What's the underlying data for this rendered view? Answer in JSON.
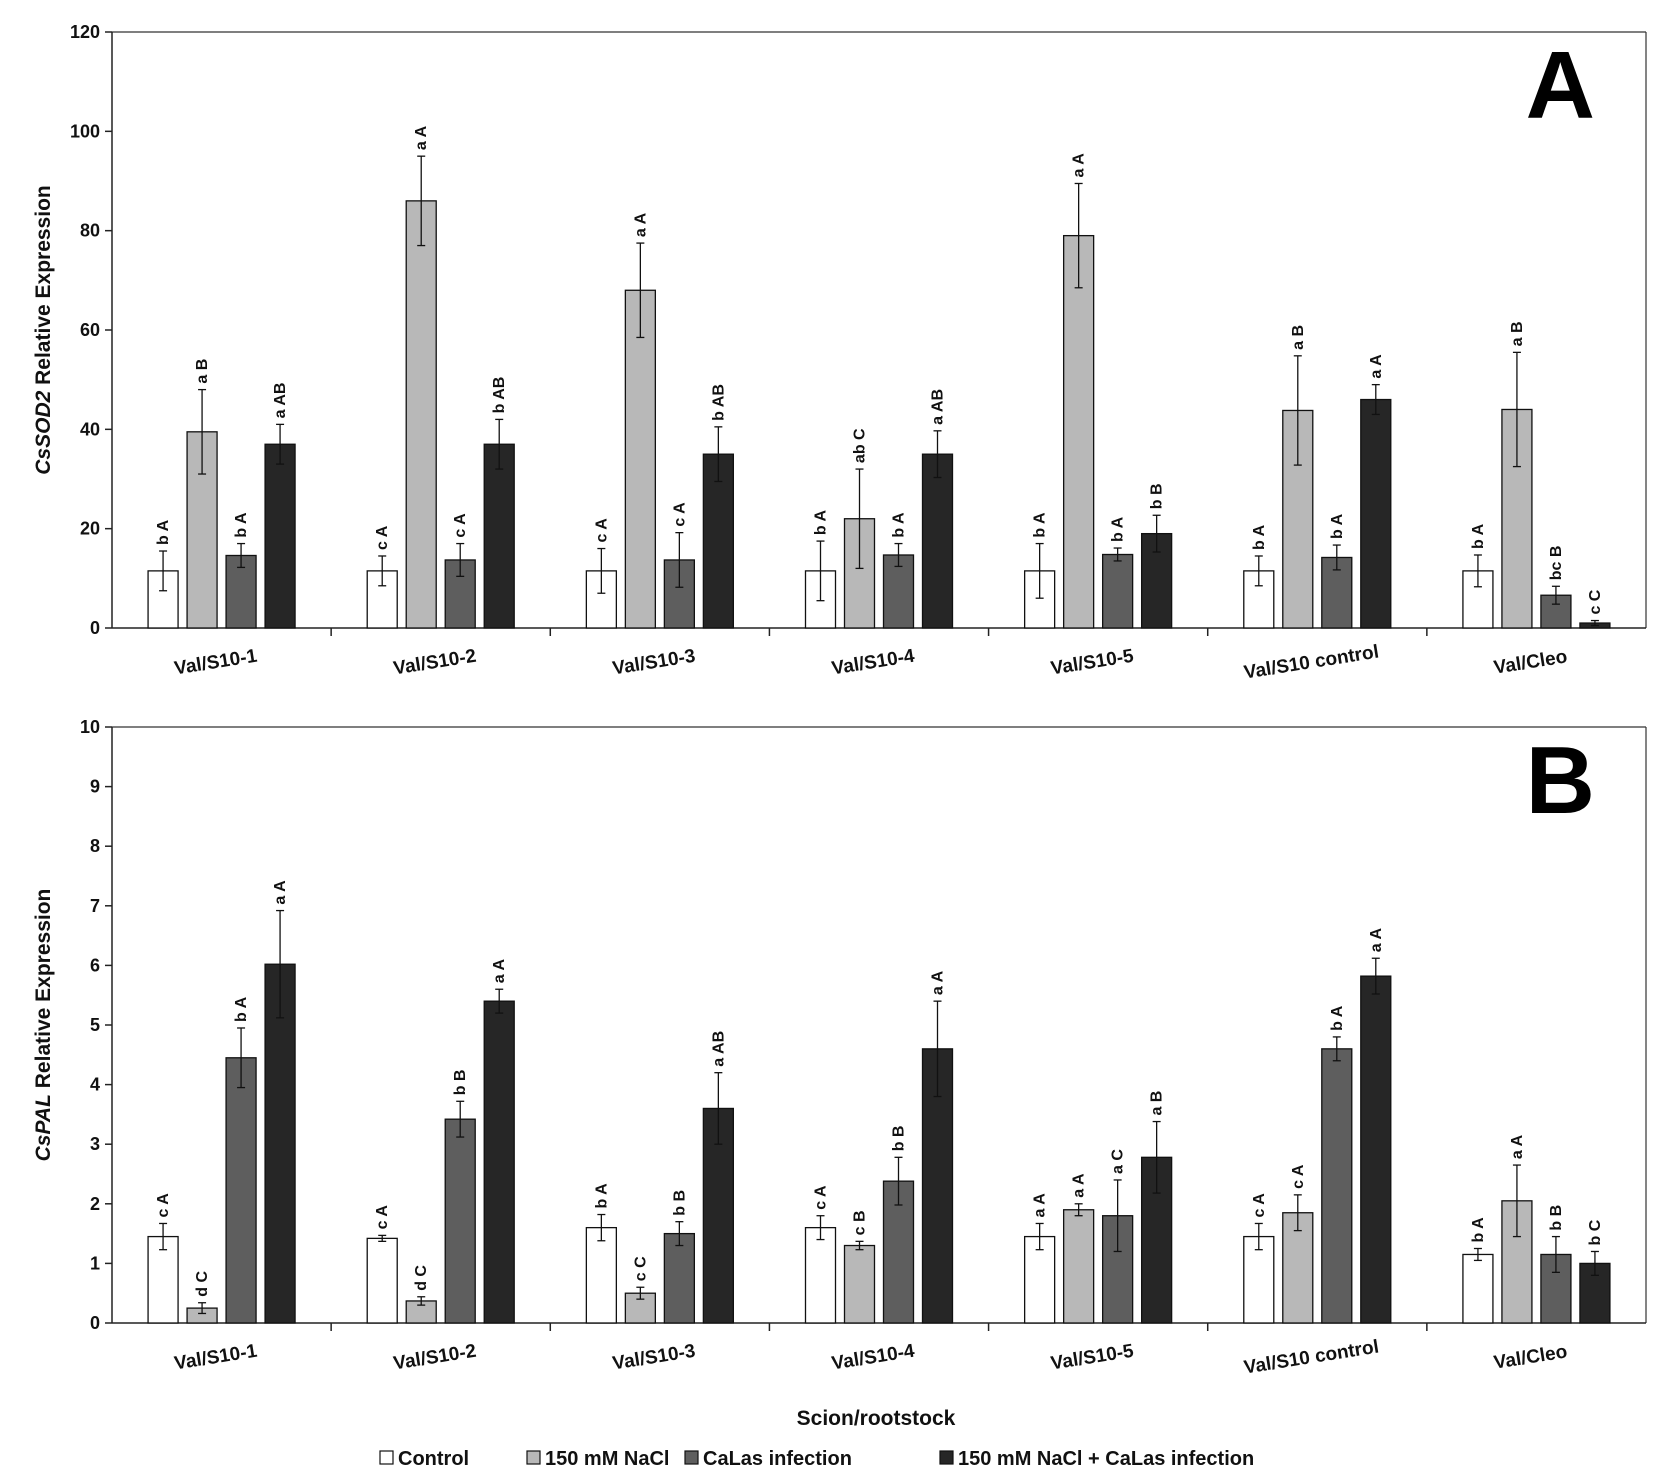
{
  "chart_data": [
    {
      "type": "bar",
      "panel_label": "A",
      "ylabel_italic": "CsSOD2",
      "ylabel_rest": " Relative Expression",
      "xlabel": "",
      "ylim": [
        0,
        120
      ],
      "yticks": [
        0,
        20,
        40,
        60,
        80,
        100,
        120
      ],
      "categories": [
        "Val/S10-1",
        "Val/S10-2",
        "Val/S10-3",
        "Val/S10-4",
        "Val/S10-5",
        "Val/S10 control",
        "Val/Cleo"
      ],
      "series": [
        {
          "name": "Control",
          "values": [
            11.5,
            11.5,
            11.5,
            11.5,
            11.5,
            11.5,
            11.5
          ],
          "errors": [
            4,
            3,
            4.5,
            6,
            5.5,
            3,
            3.2
          ],
          "labels": [
            "b A",
            "c A",
            "c A",
            "b A",
            "b A",
            "b A",
            "b A"
          ]
        },
        {
          "name": "150 mM NaCl",
          "values": [
            39.5,
            86,
            68,
            22,
            79,
            43.8,
            44
          ],
          "errors": [
            8.5,
            9,
            9.5,
            10,
            10.5,
            11,
            11.5
          ],
          "labels": [
            "a B",
            "a A",
            "a A",
            "ab C",
            "a A",
            "a B",
            "a B"
          ]
        },
        {
          "name": "CaLas infection",
          "values": [
            14.6,
            13.7,
            13.7,
            14.7,
            14.8,
            14.2,
            6.6
          ],
          "errors": [
            2.4,
            3.3,
            5.5,
            2.3,
            1.3,
            2.5,
            1.8
          ],
          "labels": [
            "b A",
            "c A",
            "c A",
            "b A",
            "b A",
            "b A",
            "bc B"
          ]
        },
        {
          "name": "150 mM NaCl + CaLas infection",
          "values": [
            37,
            37,
            35,
            35,
            19,
            46,
            1
          ],
          "errors": [
            4,
            5,
            5.5,
            4.7,
            3.7,
            3,
            0.5
          ],
          "labels": [
            "a AB",
            "b AB",
            "b AB",
            "a AB",
            "b B",
            "a A",
            "c C"
          ]
        }
      ]
    },
    {
      "type": "bar",
      "panel_label": "B",
      "ylabel_italic": "CsPAL",
      "ylabel_rest": " Relative Expression",
      "xlabel": "Scion/rootstock",
      "ylim": [
        0,
        10
      ],
      "yticks": [
        0,
        1,
        2,
        3,
        4,
        5,
        6,
        7,
        8,
        9,
        10
      ],
      "categories": [
        "Val/S10-1",
        "Val/S10-2",
        "Val/S10-3",
        "Val/S10-4",
        "Val/S10-5",
        "Val/S10 control",
        "Val/Cleo"
      ],
      "series": [
        {
          "name": "Control",
          "values": [
            1.45,
            1.42,
            1.6,
            1.6,
            1.45,
            1.45,
            1.15
          ],
          "errors": [
            0.22,
            0.05,
            0.22,
            0.2,
            0.22,
            0.22,
            0.1
          ],
          "labels": [
            "c A",
            "c A",
            "b A",
            "c A",
            "a A",
            "c A",
            "b A"
          ]
        },
        {
          "name": "150 mM NaCl",
          "values": [
            0.25,
            0.37,
            0.5,
            1.3,
            1.9,
            1.85,
            2.05
          ],
          "errors": [
            0.09,
            0.07,
            0.1,
            0.07,
            0.1,
            0.3,
            0.6
          ],
          "labels": [
            "d C",
            "d C",
            "c C",
            "c B",
            "a A",
            "c A",
            "a A"
          ]
        },
        {
          "name": "CaLas infection",
          "values": [
            4.45,
            3.42,
            1.5,
            2.38,
            1.8,
            4.6,
            1.15
          ],
          "errors": [
            0.5,
            0.3,
            0.2,
            0.4,
            0.6,
            0.2,
            0.3
          ],
          "labels": [
            "b A",
            "b B",
            "b B",
            "b B",
            "a C",
            "b A",
            "b B"
          ]
        },
        {
          "name": "150 mM NaCl + CaLas infection",
          "values": [
            6.02,
            5.4,
            3.6,
            4.6,
            2.78,
            5.82,
            1.0
          ],
          "errors": [
            0.9,
            0.2,
            0.6,
            0.8,
            0.6,
            0.3,
            0.2
          ],
          "labels": [
            "a A",
            "a A",
            "a AB",
            "a A",
            "a B",
            "a A",
            "b C"
          ]
        }
      ]
    }
  ],
  "legend": {
    "items": [
      "Control",
      "150 mM NaCl",
      "CaLas infection",
      "150 mM NaCl + CaLas infection"
    ],
    "colors": [
      "#ffffff",
      "#b8b8b8",
      "#5e5e5e",
      "#262626"
    ]
  }
}
